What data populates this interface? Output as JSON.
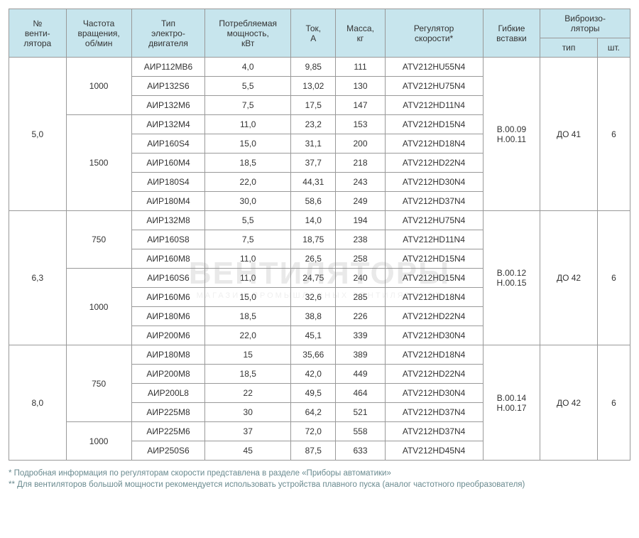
{
  "headers": {
    "fan_no": "№\nвенти-\nлятора",
    "rpm": "Частота\nвращения,\nоб/мин",
    "motor": "Тип\nэлектро-\nдвигателя",
    "power": "Потребляемая\nмощность,\nкВт",
    "current": "Ток,\nА",
    "mass": "Масса,\nкг",
    "regulator": "Регулятор\nскорости*",
    "inserts": "Гибкие\nвставки",
    "vibro": "Виброизо-\nляторы",
    "vibro_type": "тип",
    "vibro_qty": "шт."
  },
  "groups": [
    {
      "fan_no": "5,0",
      "inserts": "B.00.09\nH.00.11",
      "vibro_type": "ДО 41",
      "vibro_qty": "6",
      "rpm_groups": [
        {
          "rpm": "1000",
          "rows": [
            {
              "motor": "АИР112МВ6",
              "power": "4,0",
              "current": "9,85",
              "mass": "111",
              "reg": "ATV212HU55N4"
            },
            {
              "motor": "АИР132S6",
              "power": "5,5",
              "current": "13,02",
              "mass": "130",
              "reg": "ATV212HU75N4"
            },
            {
              "motor": "АИР132М6",
              "power": "7,5",
              "current": "17,5",
              "mass": "147",
              "reg": "ATV212HD11N4"
            }
          ]
        },
        {
          "rpm": "1500",
          "rows": [
            {
              "motor": "АИР132М4",
              "power": "11,0",
              "current": "23,2",
              "mass": "153",
              "reg": "ATV212HD15N4"
            },
            {
              "motor": "АИР160S4",
              "power": "15,0",
              "current": "31,1",
              "mass": "200",
              "reg": "ATV212HD18N4"
            },
            {
              "motor": "АИР160М4",
              "power": "18,5",
              "current": "37,7",
              "mass": "218",
              "reg": "ATV212HD22N4"
            },
            {
              "motor": "АИР180S4",
              "power": "22,0",
              "current": "44,31",
              "mass": "243",
              "reg": "ATV212HD30N4"
            },
            {
              "motor": "АИР180М4",
              "power": "30,0",
              "current": "58,6",
              "mass": "249",
              "reg": "ATV212HD37N4"
            }
          ]
        }
      ]
    },
    {
      "fan_no": "6,3",
      "inserts": "B.00.12\nH.00.15",
      "vibro_type": "ДО 42",
      "vibro_qty": "6",
      "rpm_groups": [
        {
          "rpm": "750",
          "rows": [
            {
              "motor": "АИР132М8",
              "power": "5,5",
              "current": "14,0",
              "mass": "194",
              "reg": "ATV212HU75N4"
            },
            {
              "motor": "АИР160S8",
              "power": "7,5",
              "current": "18,75",
              "mass": "238",
              "reg": "ATV212HD11N4"
            },
            {
              "motor": "АИР160М8",
              "power": "11,0",
              "current": "26,5",
              "mass": "258",
              "reg": "ATV212HD15N4"
            }
          ]
        },
        {
          "rpm": "1000",
          "rows": [
            {
              "motor": "АИР160S6",
              "power": "11,0",
              "current": "24,75",
              "mass": "240",
              "reg": "ATV212HD15N4"
            },
            {
              "motor": "АИР160М6",
              "power": "15,0",
              "current": "32,6",
              "mass": "285",
              "reg": "ATV212HD18N4"
            },
            {
              "motor": "АИР180М6",
              "power": "18,5",
              "current": "38,8",
              "mass": "226",
              "reg": "ATV212HD22N4"
            },
            {
              "motor": "АИР200М6",
              "power": "22,0",
              "current": "45,1",
              "mass": "339",
              "reg": "ATV212HD30N4"
            }
          ]
        }
      ]
    },
    {
      "fan_no": "8,0",
      "inserts": "B.00.14\nH.00.17",
      "vibro_type": "ДО 42",
      "vibro_qty": "6",
      "rpm_groups": [
        {
          "rpm": "750",
          "rows": [
            {
              "motor": "АИР180М8",
              "power": "15",
              "current": "35,66",
              "mass": "389",
              "reg": "ATV212HD18N4"
            },
            {
              "motor": "АИР200М8",
              "power": "18,5",
              "current": "42,0",
              "mass": "449",
              "reg": "ATV212HD22N4"
            },
            {
              "motor": "АИР200L8",
              "power": "22",
              "current": "49,5",
              "mass": "464",
              "reg": "ATV212HD30N4"
            },
            {
              "motor": "АИР225М8",
              "power": "30",
              "current": "64,2",
              "mass": "521",
              "reg": "ATV212HD37N4"
            }
          ]
        },
        {
          "rpm": "1000",
          "rows": [
            {
              "motor": "АИР225М6",
              "power": "37",
              "current": "72,0",
              "mass": "558",
              "reg": "ATV212HD37N4"
            },
            {
              "motor": "АИР250S6",
              "power": "45",
              "current": "87,5",
              "mass": "633",
              "reg": "ATV212HD45N4"
            }
          ]
        }
      ]
    }
  ],
  "footnotes": {
    "l1": "* Подробная информация по регуляторам скорости представлена в разделе «Приборы автоматики»",
    "l2": "** Для вентиляторов большой мощности рекомендуется использовать устройства плавного пуска (аналог частотного преобразователя)"
  },
  "watermark": {
    "big": "ВЕНТИЛЯТОРЫ",
    "small": "МАГАЗИН ПРОМЫШЛЕННЫХ ВЕНТИЛЯТОРОВ"
  },
  "colors": {
    "header_bg": "#c7e5ed",
    "border": "#999999",
    "text": "#333333",
    "footnote": "#6a8a8f"
  }
}
